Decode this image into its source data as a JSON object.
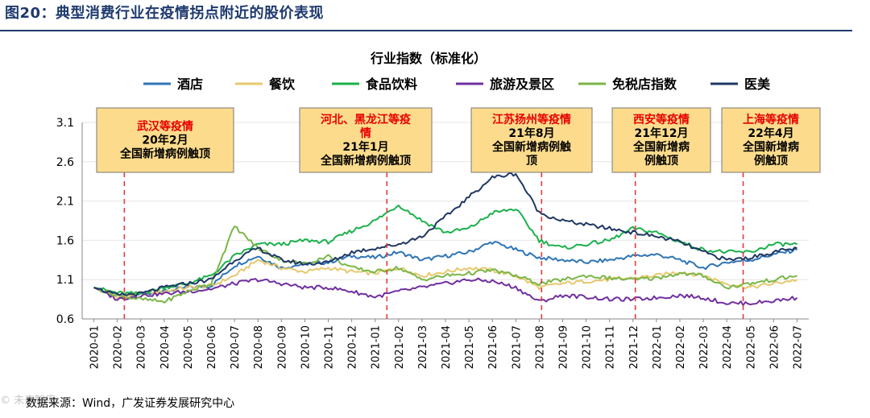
{
  "figure_label": "图20：典型消费行业在疫情拐点附近的股价表现",
  "source_text": "数据来源：Wind，广发证券发展研究中心",
  "watermark_text": "© 未来智库",
  "colors": {
    "title_blue": "#1f3a6e",
    "annotation_fill": "#fcdc8c",
    "annotation_border": "#777777",
    "annotation_red": "#e60000",
    "dashed_line": "#e23c3c"
  },
  "annotations": [
    {
      "lines": [
        "武汉等疫情",
        "20年2月",
        "全国新增病例触顶"
      ],
      "date_index": 1.3
    },
    {
      "lines": [
        "河北、黑龙江等疫",
        "情",
        "21年1月",
        "全国新增病例触顶"
      ],
      "date_index": 12.5
    },
    {
      "lines": [
        "江苏扬州等疫情",
        "21年8月",
        "全国新增病例触",
        "顶"
      ],
      "date_index": 19.1
    },
    {
      "lines": [
        "西安等疫情",
        "21年12月",
        "全国新增病",
        "例触顶"
      ],
      "date_index": 23.1
    },
    {
      "lines": [
        "上海等疫情",
        "22年4月",
        "全国新增病",
        "例触顶"
      ],
      "date_index": 27.7
    }
  ],
  "chart_data": {
    "type": "line",
    "title": "行业指数（标准化）",
    "xlabel": "",
    "ylabel": "",
    "ylim": [
      0.6,
      3.1
    ],
    "yticks": [
      "3.1",
      "2.6",
      "2.1",
      "1.6",
      "1.1",
      "0.6"
    ],
    "categories": [
      "2020-01",
      "2020-02",
      "2020-03",
      "2020-04",
      "2020-05",
      "2020-06",
      "2020-07",
      "2020-08",
      "2020-09",
      "2020-10",
      "2020-11",
      "2020-12",
      "2021-01",
      "2021-02",
      "2021-03",
      "2021-04",
      "2021-05",
      "2021-06",
      "2021-07",
      "2021-08",
      "2021-09",
      "2021-10",
      "2021-11",
      "2021-12",
      "2022-01",
      "2022-02",
      "2022-03",
      "2022-04",
      "2022-05",
      "2022-06",
      "2022-07"
    ],
    "series": [
      {
        "name": "酒店",
        "color": "#2e75b6",
        "values": [
          1.0,
          0.88,
          0.92,
          0.95,
          1.0,
          1.02,
          1.28,
          1.4,
          1.25,
          1.3,
          1.32,
          1.4,
          1.38,
          1.45,
          1.35,
          1.4,
          1.45,
          1.58,
          1.48,
          1.38,
          1.35,
          1.32,
          1.35,
          1.4,
          1.42,
          1.35,
          1.25,
          1.32,
          1.35,
          1.42,
          1.48
        ]
      },
      {
        "name": "餐饮",
        "color": "#e6c86e",
        "values": [
          1.0,
          0.88,
          0.92,
          0.95,
          1.0,
          1.02,
          1.15,
          1.35,
          1.25,
          1.2,
          1.25,
          1.2,
          1.18,
          1.25,
          1.15,
          1.2,
          1.25,
          1.22,
          1.15,
          1.0,
          1.05,
          1.08,
          1.1,
          1.12,
          1.15,
          1.2,
          1.15,
          1.05,
          1.0,
          1.05,
          1.1
        ]
      },
      {
        "name": "食品饮料",
        "color": "#1cb14c",
        "values": [
          1.0,
          0.93,
          0.92,
          1.0,
          1.05,
          1.15,
          1.4,
          1.55,
          1.55,
          1.6,
          1.58,
          1.72,
          1.85,
          2.05,
          1.85,
          1.7,
          1.75,
          1.95,
          2.0,
          1.6,
          1.5,
          1.55,
          1.6,
          1.75,
          1.7,
          1.58,
          1.48,
          1.45,
          1.45,
          1.55,
          1.55
        ]
      },
      {
        "name": "旅游及景区",
        "color": "#7030a0",
        "values": [
          1.0,
          0.85,
          0.9,
          0.92,
          0.95,
          0.98,
          1.05,
          1.1,
          1.05,
          1.0,
          1.0,
          0.95,
          0.88,
          0.95,
          1.0,
          1.05,
          1.1,
          1.08,
          1.0,
          0.82,
          0.9,
          0.88,
          0.85,
          0.85,
          0.87,
          0.9,
          0.87,
          0.8,
          0.8,
          0.83,
          0.87
        ]
      },
      {
        "name": "免税店指数",
        "color": "#7ab648",
        "values": [
          1.0,
          0.9,
          0.85,
          0.82,
          0.95,
          1.05,
          1.78,
          1.5,
          1.35,
          1.3,
          1.4,
          1.25,
          1.2,
          1.25,
          1.1,
          1.15,
          1.18,
          1.22,
          1.15,
          1.05,
          1.1,
          1.15,
          1.12,
          1.1,
          1.12,
          1.18,
          1.15,
          1.0,
          1.05,
          1.1,
          1.15
        ]
      },
      {
        "name": "医美",
        "color": "#1f3864",
        "values": [
          1.0,
          0.9,
          0.92,
          1.0,
          1.05,
          1.1,
          1.35,
          1.5,
          1.35,
          1.3,
          1.32,
          1.45,
          1.5,
          1.55,
          1.65,
          1.9,
          2.15,
          2.4,
          2.45,
          1.95,
          1.85,
          1.8,
          1.75,
          1.7,
          1.65,
          1.58,
          1.45,
          1.35,
          1.38,
          1.45,
          1.5
        ]
      }
    ]
  }
}
